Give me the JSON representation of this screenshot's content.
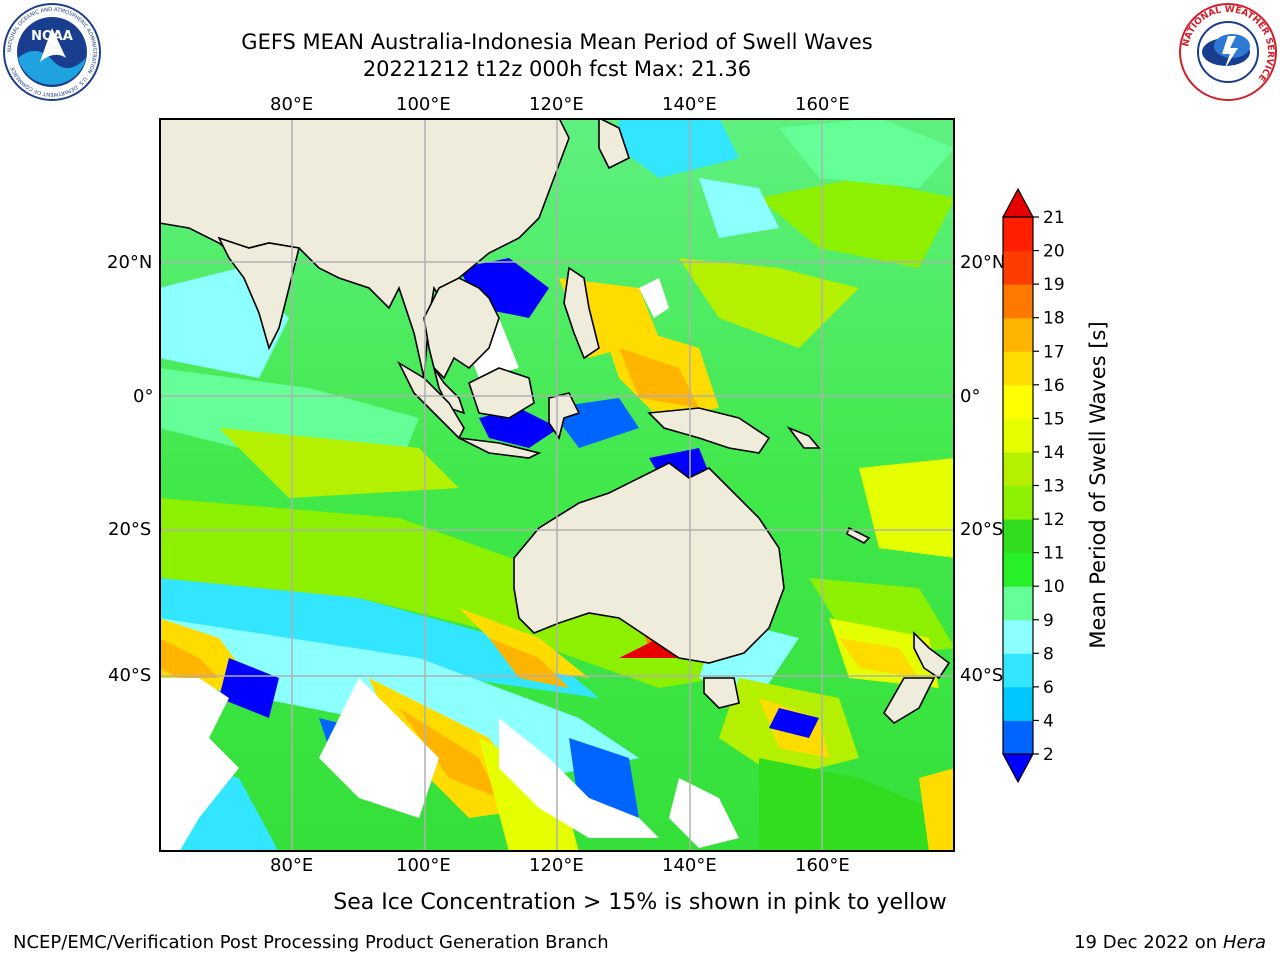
{
  "header": {
    "title_line1": "GEFS MEAN Australia-Indonesia Mean Period of Swell Waves",
    "title_line2": "20221212 t12z 000h fcst   Max: 21.36"
  },
  "logos": {
    "left": "noaa-logo",
    "left_text": "NOAA",
    "left_ring_text": "NATIONAL OCEANIC AND ATMOSPHERIC ADMINISTRATION · U.S. DEPARTMENT OF COMMERCE",
    "right": "nws-logo",
    "right_ring_text": "NATIONAL WEATHER SERVICE"
  },
  "map": {
    "lon_ticks": [
      "80°E",
      "100°E",
      "120°E",
      "140°E",
      "160°E"
    ],
    "lat_ticks": [
      "20°N",
      "0°",
      "20°S",
      "40°S"
    ],
    "lon_range": [
      60,
      180
    ],
    "lat_range": [
      -68,
      40
    ],
    "land_color": "#efecdc",
    "grid_color": "#b0b0b0"
  },
  "colorbar": {
    "label": "Mean Period of Swell Waves [s]",
    "ticks": [
      "2",
      "4",
      "6",
      "8",
      "9",
      "10",
      "11",
      "12",
      "13",
      "14",
      "15",
      "16",
      "17",
      "18",
      "19",
      "20",
      "21"
    ],
    "colors": [
      "#0000ff",
      "#0064ff",
      "#00c8ff",
      "#32e6ff",
      "#8cffff",
      "#64ff96",
      "#28f028",
      "#32dc1e",
      "#8cf000",
      "#b4f000",
      "#e6ff00",
      "#ffff00",
      "#ffdc00",
      "#ffb400",
      "#ff7800",
      "#ff3c00",
      "#ff1e00",
      "#e60000"
    ]
  },
  "footer": {
    "sea_ice_note": "Sea Ice Concentration > 15% is shown in pink to yellow",
    "credit_left": "NCEP/EMC/Verification Post Processing Product Generation Branch",
    "credit_date": "19 Dec 2022 on",
    "credit_host": "Hera"
  }
}
